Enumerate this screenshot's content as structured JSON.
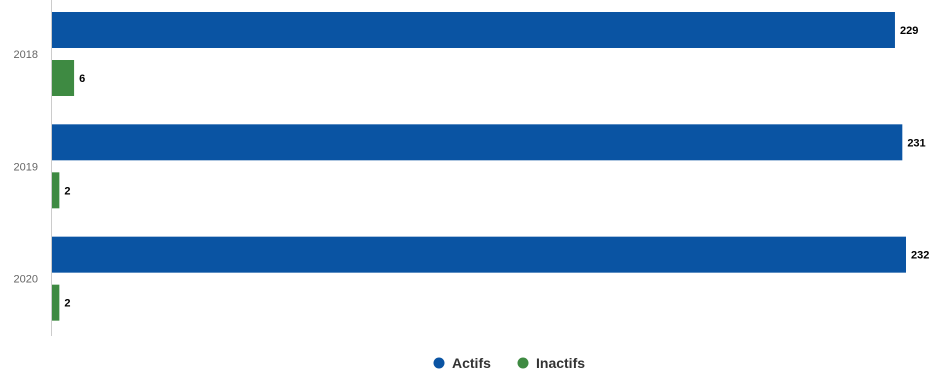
{
  "chart_data": {
    "type": "bar",
    "orientation": "horizontal",
    "categories": [
      "2018",
      "2019",
      "2020"
    ],
    "series": [
      {
        "name": "Actifs",
        "values": [
          229,
          231,
          232
        ],
        "color": "#0a54a3"
      },
      {
        "name": "Inactifs",
        "values": [
          6,
          2,
          2
        ],
        "color": "#3e8a42"
      }
    ],
    "xlim": [
      0,
      232
    ],
    "grid": false,
    "legend": "bottom-center",
    "data_labels": true
  }
}
